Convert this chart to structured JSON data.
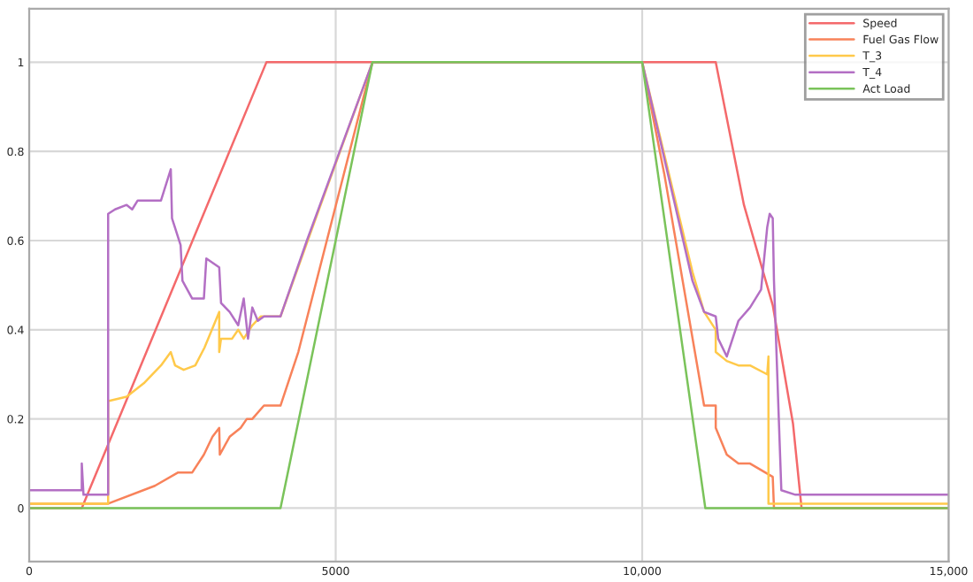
{
  "chart_data": {
    "type": "line",
    "xlim": [
      0,
      15000
    ],
    "ylim": [
      -0.12,
      1.12
    ],
    "xticks": [
      0,
      5000,
      {
        "value": 10000,
        "label": "10,000"
      },
      {
        "value": 15000,
        "label": "15,000"
      }
    ],
    "yticks": [
      0,
      0.2,
      0.4,
      0.6,
      0.8,
      1
    ],
    "grid": true,
    "legend": "top right",
    "series": [
      {
        "name": "Speed",
        "color": "#f4696b",
        "x": [
          0,
          858,
          3870,
          11200,
          11660,
          12130,
          12460,
          12600,
          15000
        ],
        "values": [
          0,
          0,
          1,
          1,
          0.68,
          0.455,
          0.19,
          0,
          0
        ]
      },
      {
        "name": "Fuel Gas Flow",
        "color": "#f8825a",
        "x": [
          0,
          1288,
          2050,
          2430,
          2660,
          2850,
          2990,
          3100,
          3110,
          3270,
          3450,
          3550,
          3640,
          3830,
          4100,
          4390,
          5600,
          10000,
          10360,
          11010,
          11200,
          11200,
          11380,
          11570,
          11760,
          12130,
          12150,
          15000
        ],
        "values": [
          0.01,
          0.01,
          0.05,
          0.08,
          0.08,
          0.12,
          0.16,
          0.18,
          0.12,
          0.16,
          0.18,
          0.2,
          0.2,
          0.23,
          0.23,
          0.35,
          1,
          1,
          0.75,
          0.23,
          0.23,
          0.18,
          0.12,
          0.1,
          0.1,
          0.07,
          0,
          0
        ]
      },
      {
        "name": "T_3",
        "color": "#ffc94a",
        "x": [
          0,
          1288,
          1288,
          1590,
          1870,
          2150,
          2310,
          2380,
          2520,
          2710,
          2860,
          3100,
          3100,
          3130,
          3310,
          3410,
          3500,
          3640,
          3780,
          4100,
          4570,
          5600,
          10000,
          10820,
          11010,
          11200,
          11200,
          11380,
          11570,
          11760,
          12040,
          12060,
          12060,
          15000
        ],
        "values": [
          0.01,
          0.01,
          0.24,
          0.25,
          0.28,
          0.32,
          0.35,
          0.32,
          0.31,
          0.32,
          0.36,
          0.44,
          0.35,
          0.38,
          0.38,
          0.4,
          0.38,
          0.41,
          0.43,
          0.43,
          0.61,
          1,
          1,
          0.53,
          0.44,
          0.4,
          0.35,
          0.33,
          0.32,
          0.32,
          0.3,
          0.34,
          0.01,
          0.01
        ]
      },
      {
        "name": "T_4",
        "color": "#b36fc4",
        "x": [
          0,
          858,
          858,
          886,
          1288,
          1288,
          1400,
          1590,
          1680,
          1770,
          2150,
          2310,
          2330,
          2470,
          2500,
          2660,
          2850,
          2890,
          3100,
          3130,
          3270,
          3410,
          3500,
          3570,
          3640,
          3730,
          3830,
          4100,
          4530,
          5600,
          10000,
          10820,
          11010,
          11200,
          11240,
          11380,
          11570,
          11760,
          11940,
          12040,
          12080,
          12130,
          12150,
          12270,
          12500,
          15000
        ],
        "values": [
          0.04,
          0.04,
          0.1,
          0.03,
          0.03,
          0.66,
          0.67,
          0.68,
          0.67,
          0.69,
          0.69,
          0.76,
          0.65,
          0.59,
          0.51,
          0.47,
          0.47,
          0.56,
          0.54,
          0.46,
          0.44,
          0.41,
          0.47,
          0.38,
          0.45,
          0.42,
          0.43,
          0.43,
          0.6,
          1,
          1,
          0.51,
          0.44,
          0.43,
          0.38,
          0.34,
          0.42,
          0.45,
          0.49,
          0.63,
          0.66,
          0.65,
          0.51,
          0.04,
          0.03,
          0.03
        ]
      },
      {
        "name": "Act Load",
        "color": "#7ac35a",
        "x": [
          0,
          4100,
          5600,
          10000,
          11030,
          15000
        ],
        "values": [
          0,
          0,
          1,
          1,
          0,
          0
        ]
      }
    ]
  }
}
